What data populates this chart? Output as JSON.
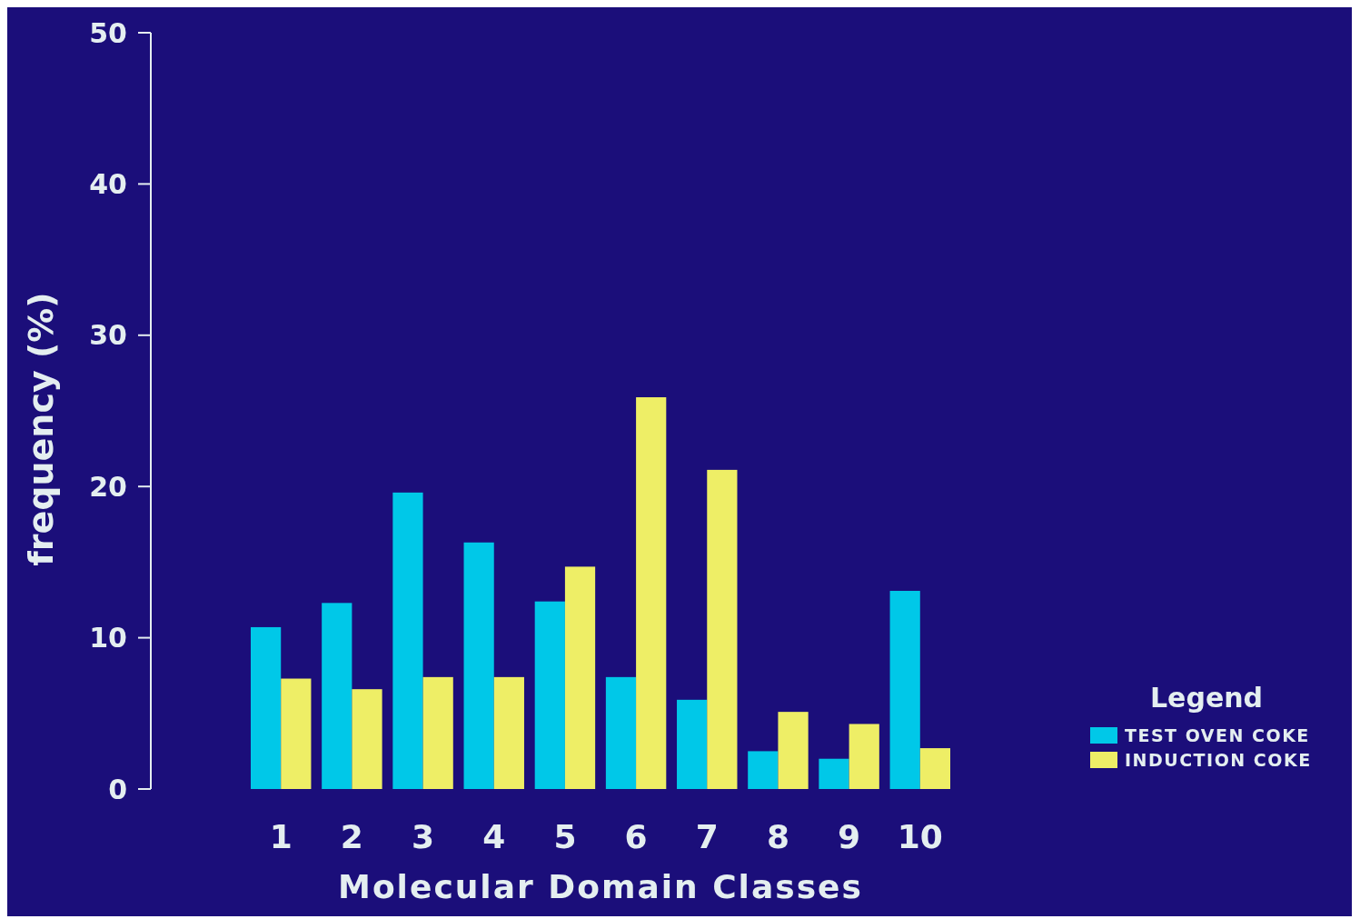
{
  "chart_data": {
    "type": "bar",
    "xlabel": "Molecular Domain Classes",
    "ylabel": "frequency (%)",
    "legend_title": "Legend",
    "categories": [
      "1",
      "2",
      "3",
      "4",
      "5",
      "6",
      "7",
      "8",
      "9",
      "10"
    ],
    "series": [
      {
        "name": "TEST OVEN COKE",
        "color": "#00c8e8",
        "values": [
          10.7,
          12.3,
          19.6,
          16.3,
          12.4,
          7.4,
          5.9,
          2.5,
          2.0,
          13.1
        ]
      },
      {
        "name": "INDUCTION COKE",
        "color": "#eeee66",
        "values": [
          7.3,
          6.6,
          7.4,
          7.4,
          14.7,
          25.9,
          21.1,
          5.1,
          4.3,
          2.7
        ]
      }
    ],
    "ylim": [
      0,
      50
    ],
    "yticks": [
      0,
      10,
      20,
      30,
      40,
      50
    ],
    "grid": false,
    "legend": "bottom right"
  }
}
